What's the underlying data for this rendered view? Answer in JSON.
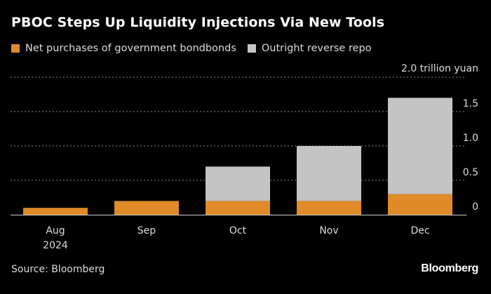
{
  "title": "PBOC Steps Up Liquidity Injections Via New Tools",
  "source": "Source: Bloomberg",
  "brand": "Bloomberg",
  "colors": {
    "background": "#000000",
    "series_bond": "#e08b27",
    "series_repo": "#c4c4c4",
    "grid": "#8a8a8a",
    "text": "#dcdcdc"
  },
  "chart_data": {
    "type": "bar",
    "stacked": true,
    "categories": [
      "Aug",
      "Sep",
      "Oct",
      "Nov",
      "Dec"
    ],
    "category_sublabels": [
      "2024",
      "",
      "",
      "",
      ""
    ],
    "series": [
      {
        "name": "Net purchases of government bondbonds",
        "color": "#e08b27",
        "values": [
          0.1,
          0.2,
          0.2,
          0.2,
          0.3
        ]
      },
      {
        "name": "Outright reverse repo",
        "color": "#c4c4c4",
        "values": [
          0,
          0,
          0.5,
          0.8,
          1.4
        ]
      }
    ],
    "yticks": [
      {
        "value": 0,
        "label": "0"
      },
      {
        "value": 0.5,
        "label": "0.5"
      },
      {
        "value": 1.0,
        "label": "1.0"
      },
      {
        "value": 1.5,
        "label": "1.5"
      },
      {
        "value": 2.0,
        "label": "2.0 trillion yuan"
      }
    ],
    "ylim": [
      0,
      2.0
    ],
    "ylabel": "",
    "xlabel": "",
    "grid": true,
    "legend_position": "top-left"
  }
}
